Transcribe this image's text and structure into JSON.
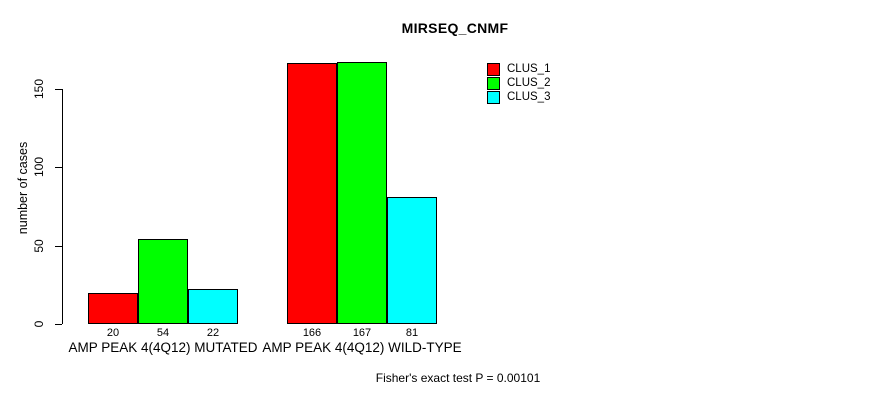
{
  "title": "MIRSEQ_CNMF",
  "y_axis": {
    "label": "number of cases",
    "ticks": [
      0,
      50,
      100,
      150
    ]
  },
  "footer": "Fisher's exact test P = 0.00101",
  "legend": {
    "items": [
      {
        "label": "CLUS_1",
        "color": "#ff0000"
      },
      {
        "label": "CLUS_2",
        "color": "#00ff00"
      },
      {
        "label": "CLUS_3",
        "color": "#00ffff"
      }
    ]
  },
  "chart_data": {
    "type": "bar",
    "title": "MIRSEQ_CNMF",
    "categories": [
      "AMP PEAK 4(4Q12) MUTATED",
      "AMP PEAK 4(4Q12) WILD-TYPE"
    ],
    "series": [
      {
        "name": "CLUS_1",
        "color": "#ff0000",
        "values": [
          20,
          166
        ]
      },
      {
        "name": "CLUS_2",
        "color": "#00ff00",
        "values": [
          54,
          167
        ]
      },
      {
        "name": "CLUS_3",
        "color": "#00ffff",
        "values": [
          22,
          81
        ]
      }
    ],
    "xlabel": "",
    "ylabel": "number of cases",
    "ylim": [
      0,
      170
    ],
    "yticks": [
      0,
      50,
      100,
      150
    ],
    "bar_value_labels": [
      [
        20,
        54,
        22
      ],
      [
        166,
        167,
        81
      ]
    ],
    "legend_position": "top-right",
    "grid": false,
    "annotation": "Fisher's exact test P = 0.00101"
  }
}
